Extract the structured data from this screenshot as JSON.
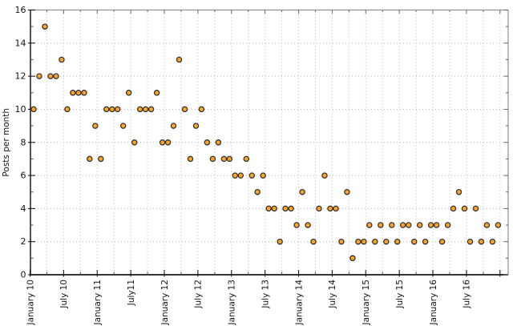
{
  "figure": {
    "background": "#ffffff",
    "ylabel": "Posts per month"
  },
  "style": {
    "point_fill": "#ffa526",
    "point_stroke": "#333333",
    "grid_color": "#b8b8b8",
    "axis_color": "#1a1a1a",
    "frame_color": "#909090",
    "text_color": "#111111"
  },
  "chart_data": {
    "type": "scatter",
    "title": "",
    "xlabel": "",
    "ylabel": "Posts per month",
    "ylim": [
      0,
      16
    ],
    "ytick_step": 2,
    "ytick_labels": [
      "0",
      "2",
      "4",
      "6",
      "8",
      "10",
      "12",
      "14",
      "16"
    ],
    "xtick_labels": [
      "January 10",
      "July 10",
      "January 11",
      "July11",
      "January 12",
      "July 12",
      "January 13",
      "July 13",
      "January 14",
      "July 14",
      "January 15",
      "July 15",
      "January 16",
      "July 16"
    ],
    "xtick_interval_months": 6,
    "minor_interval_months": 3,
    "grid": "dotted; vertical every 3 months, horizontal every 2 units",
    "legend": "none",
    "series": [
      {
        "name": "Posts per month",
        "start_month": "January 2010",
        "end_month": "December 2016",
        "monthly_values": [
          10,
          12,
          15,
          12,
          12,
          13,
          10,
          11,
          11,
          11,
          7,
          9,
          7,
          10,
          10,
          10,
          9,
          11,
          8,
          10,
          10,
          10,
          11,
          8,
          8,
          9,
          13,
          10,
          7,
          9,
          10,
          8,
          7,
          8,
          7,
          7,
          6,
          6,
          7,
          6,
          5,
          6,
          4,
          4,
          2,
          4,
          4,
          3,
          5,
          3,
          2,
          4,
          6,
          4,
          4,
          2,
          5,
          1,
          2,
          2,
          3,
          2,
          3,
          2,
          3,
          2,
          3,
          3,
          2,
          3,
          2,
          3,
          3,
          2,
          3,
          4,
          5,
          4,
          2,
          4,
          2,
          3,
          2,
          3
        ]
      }
    ]
  }
}
